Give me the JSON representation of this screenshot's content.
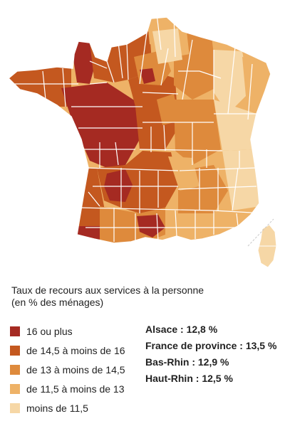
{
  "map": {
    "colors": {
      "c1": "#a52a22",
      "c2": "#c4581f",
      "c3": "#de8a3c",
      "c4": "#eeb267",
      "c5": "#f6d7a6",
      "border": "#ffffff"
    }
  },
  "legend": {
    "title_line1": "Taux de recours aux services à la personne",
    "title_line2": "(en % des ménages)",
    "items": [
      {
        "label": "16 ou plus",
        "color": "#a52a22"
      },
      {
        "label": "de 14,5 à moins de 16",
        "color": "#c4581f"
      },
      {
        "label": "de 13 à moins de 14,5",
        "color": "#de8a3c"
      },
      {
        "label": "de 11,5 à moins de 13",
        "color": "#eeb267"
      },
      {
        "label": "moins de 11,5",
        "color": "#f6d7a6"
      }
    ]
  },
  "stats": [
    {
      "text": "Alsace : 12,8 %"
    },
    {
      "text": "France de province : 13,5 %"
    },
    {
      "text": "Bas-Rhin : 12,9 %"
    },
    {
      "text": "Haut-Rhin : 12,5 %"
    }
  ]
}
